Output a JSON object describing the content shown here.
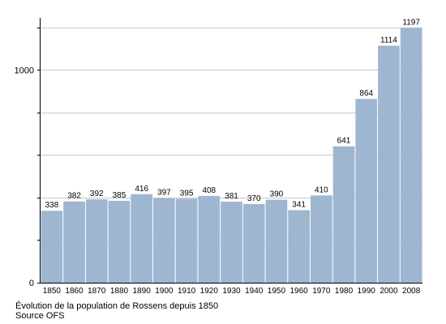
{
  "chart_data": {
    "type": "bar",
    "categories": [
      "1850",
      "1860",
      "1870",
      "1880",
      "1890",
      "1900",
      "1910",
      "1920",
      "1930",
      "1940",
      "1950",
      "1960",
      "1970",
      "1980",
      "1990",
      "2000",
      "2008"
    ],
    "values": [
      338,
      382,
      392,
      385,
      416,
      397,
      395,
      408,
      381,
      370,
      390,
      341,
      410,
      641,
      864,
      1114,
      1197
    ],
    "data_labels": [
      "338",
      "382",
      "392",
      "385",
      "416",
      "397",
      "395",
      "408",
      "381",
      "370",
      "390",
      "341",
      "410",
      "641",
      "864",
      "1114",
      "1197"
    ],
    "ylim": [
      0,
      1230
    ],
    "ytick_labels": [
      {
        "value": 0,
        "label": "0"
      },
      {
        "value": 1000,
        "label": "1000"
      }
    ],
    "gridlines": [
      200,
      400,
      600,
      800,
      1000,
      1200
    ],
    "grid": true,
    "bar_color": "#9fb6d0",
    "grid_color": "#c8c8c8",
    "xlabel": "",
    "ylabel": ""
  },
  "caption": {
    "line1": "Évolution de la population de Rossens depuis 1850",
    "line2": "Source OFS"
  }
}
